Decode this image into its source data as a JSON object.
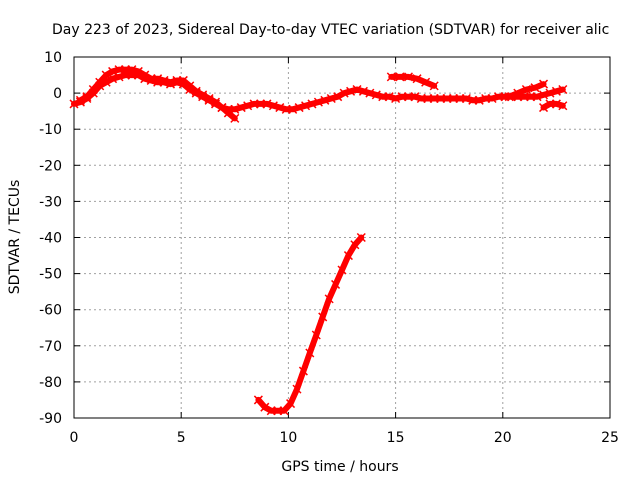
{
  "chart_data": {
    "type": "scatter",
    "title": "Day 223 of 2023, Sidereal Day-to-day VTEC variation (SDTVAR) for receiver alic",
    "xlabel": "GPS time / hours",
    "ylabel": "SDTVAR / TECUs",
    "xlim": [
      0,
      25
    ],
    "ylim": [
      -90,
      10
    ],
    "xticks": [
      0,
      5,
      10,
      15,
      20,
      25
    ],
    "yticks": [
      10,
      0,
      -10,
      -20,
      -30,
      -40,
      -50,
      -60,
      -70,
      -80,
      -90
    ],
    "grid": true,
    "legend": "none",
    "series_color": "#ff0000",
    "series": [
      {
        "x": [
          0.0,
          0.3,
          0.6,
          0.9,
          1.2,
          1.5,
          1.8,
          2.1,
          2.4,
          2.7,
          3.0,
          3.3,
          3.6,
          3.9,
          4.2,
          4.5,
          4.8,
          5.1,
          5.4,
          5.7,
          6.0,
          6.3,
          6.6,
          6.9,
          7.2,
          7.5,
          7.8,
          8.1,
          8.4,
          8.7,
          9.0,
          9.3,
          9.6,
          9.9,
          10.2,
          10.5,
          10.8,
          11.1,
          11.4,
          11.7,
          12.0,
          12.3,
          12.6,
          12.9,
          13.2,
          13.5,
          13.8,
          14.1,
          14.4,
          14.7,
          15.0,
          15.3,
          15.6,
          15.9,
          16.2,
          16.5,
          16.8,
          17.1,
          17.4,
          17.7,
          18.0,
          18.3,
          18.6,
          18.9,
          19.2,
          19.5,
          19.8,
          20.1,
          20.4,
          20.7,
          21.0,
          21.3,
          21.6,
          21.9,
          22.2,
          22.5,
          22.8
        ],
        "y": [
          -3,
          -2.5,
          -1.5,
          0,
          2,
          3,
          4,
          4.5,
          5,
          5,
          5,
          4,
          3.5,
          3,
          3,
          2.5,
          3,
          2.5,
          1,
          0,
          -1,
          -2,
          -3,
          -4,
          -4.5,
          -4.5,
          -4,
          -3.5,
          -3,
          -3,
          -3,
          -3.5,
          -4,
          -4.5,
          -4.5,
          -4,
          -3.5,
          -3,
          -2.5,
          -2,
          -1.5,
          -1,
          0,
          0.5,
          1,
          0.5,
          0,
          -0.5,
          -1,
          -1,
          -1.5,
          -1,
          -1,
          -1,
          -1.5,
          -1.5,
          -1.5,
          -1.5,
          -1.5,
          -1.5,
          -1.5,
          -1.5,
          -2,
          -2,
          -1.5,
          -1.5,
          -1,
          -1,
          -1,
          -1,
          -1,
          -1,
          -1,
          -0.5,
          0,
          0.5,
          1
        ]
      },
      {
        "x": [
          0.3,
          0.6,
          0.9,
          1.2,
          1.5,
          1.8,
          2.1,
          2.4,
          2.7,
          3.0,
          3.3,
          3.6,
          3.9,
          4.2,
          4.5,
          4.8,
          5.1,
          5.4,
          5.7,
          6.0,
          6.3,
          6.6,
          6.9,
          7.2,
          7.5
        ],
        "y": [
          -2,
          -1,
          1,
          3,
          5,
          6,
          6.5,
          6.5,
          6.5,
          6,
          5,
          4,
          4,
          3.5,
          3,
          3.5,
          3.5,
          2,
          0.5,
          -0.5,
          -1.5,
          -2.5,
          -4,
          -5.5,
          -7
        ]
      },
      {
        "x": [
          14.8,
          15.2,
          15.6,
          16.0,
          16.4,
          16.8
        ],
        "y": [
          4.5,
          4.5,
          4.5,
          4,
          3,
          2
        ]
      },
      {
        "x": [
          20.3,
          20.7,
          21.1,
          21.5,
          21.9
        ],
        "y": [
          -1,
          0,
          1,
          1.5,
          2.5
        ]
      },
      {
        "x": [
          21.9,
          22.2,
          22.5,
          22.8
        ],
        "y": [
          -4,
          -3,
          -3,
          -3.5
        ]
      },
      {
        "x": [
          8.6,
          8.9,
          9.2,
          9.5,
          9.8,
          10.1,
          10.4,
          10.7,
          11.0,
          11.3,
          11.6,
          11.9,
          12.2,
          12.5,
          12.8,
          13.1,
          13.4
        ],
        "y": [
          -85,
          -87,
          -88,
          -88,
          -88,
          -86,
          -82,
          -77,
          -72,
          -67,
          -62,
          -57,
          -53,
          -49,
          -45,
          -42,
          -40
        ]
      }
    ]
  }
}
